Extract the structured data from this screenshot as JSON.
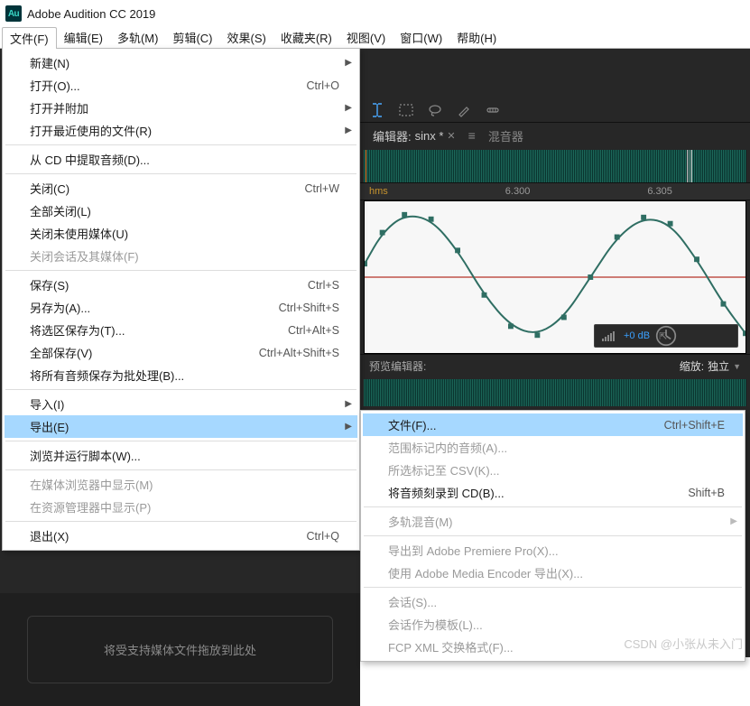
{
  "app": {
    "title": "Adobe Audition CC 2019",
    "icon_text": "Au",
    "icon_bg": "#00343a",
    "icon_fg": "#3ad6c6"
  },
  "menubar": {
    "items": [
      {
        "label": "文件(F)",
        "open": true
      },
      {
        "label": "编辑(E)"
      },
      {
        "label": "多轨(M)"
      },
      {
        "label": "剪辑(C)"
      },
      {
        "label": "效果(S)"
      },
      {
        "label": "收藏夹(R)"
      },
      {
        "label": "视图(V)"
      },
      {
        "label": "窗口(W)"
      },
      {
        "label": "帮助(H)"
      }
    ]
  },
  "file_menu": {
    "highlight_bg": "#a6d8ff",
    "items": [
      {
        "label": "新建(N)",
        "submenu": true
      },
      {
        "label": "打开(O)...",
        "shortcut": "Ctrl+O"
      },
      {
        "label": "打开并附加",
        "submenu": true
      },
      {
        "label": "打开最近使用的文件(R)",
        "submenu": true
      },
      {
        "sep": true
      },
      {
        "label": "从 CD 中提取音频(D)..."
      },
      {
        "sep": true
      },
      {
        "label": "关闭(C)",
        "shortcut": "Ctrl+W"
      },
      {
        "label": "全部关闭(L)"
      },
      {
        "label": "关闭未使用媒体(U)"
      },
      {
        "label": "关闭会话及其媒体(F)",
        "disabled": true
      },
      {
        "sep": true
      },
      {
        "label": "保存(S)",
        "shortcut": "Ctrl+S"
      },
      {
        "label": "另存为(A)...",
        "shortcut": "Ctrl+Shift+S"
      },
      {
        "label": "将选区保存为(T)...",
        "shortcut": "Ctrl+Alt+S"
      },
      {
        "label": "全部保存(V)",
        "shortcut": "Ctrl+Alt+Shift+S"
      },
      {
        "label": "将所有音频保存为批处理(B)..."
      },
      {
        "sep": true
      },
      {
        "label": "导入(I)",
        "submenu": true
      },
      {
        "label": "导出(E)",
        "submenu": true,
        "highlight": true
      },
      {
        "sep": true
      },
      {
        "label": "浏览并运行脚本(W)..."
      },
      {
        "sep": true
      },
      {
        "label": "在媒体浏览器中显示(M)",
        "disabled": true
      },
      {
        "label": "在资源管理器中显示(P)",
        "disabled": true
      },
      {
        "sep": true
      },
      {
        "label": "退出(X)",
        "shortcut": "Ctrl+Q"
      }
    ]
  },
  "export_menu": {
    "items": [
      {
        "label": "文件(F)...",
        "shortcut": "Ctrl+Shift+E",
        "highlight": true
      },
      {
        "label": "范围标记内的音频(A)...",
        "disabled": true
      },
      {
        "label": "所选标记至 CSV(K)...",
        "disabled": true
      },
      {
        "label": "将音频刻录到 CD(B)...",
        "shortcut": "Shift+B"
      },
      {
        "sep": true
      },
      {
        "label": "多轨混音(M)",
        "submenu": true,
        "disabled": true
      },
      {
        "sep": true
      },
      {
        "label": "导出到 Adobe Premiere Pro(X)...",
        "disabled": true
      },
      {
        "label": "使用 Adobe Media Encoder 导出(X)...",
        "disabled": true
      },
      {
        "sep": true
      },
      {
        "label": "会话(S)...",
        "disabled": true
      },
      {
        "label": "会话作为模板(L)...",
        "disabled": true
      },
      {
        "label": "FCP XML 交换格式(F)...",
        "disabled": true
      }
    ]
  },
  "editor": {
    "tabs": {
      "editor_label": "编辑器:",
      "doc_name": "sinx *",
      "mixer_label": "混音器"
    },
    "hms": {
      "label": "hms",
      "t1": "6.300",
      "t2": "6.305"
    },
    "hud": {
      "db_label": "+0 dB"
    },
    "preview": {
      "label": "预览编辑器:",
      "zoom_label": "缩放:",
      "zoom_value": "独立"
    },
    "waveform": {
      "axis_color": "#c0544a",
      "line_color": "#2f6e63",
      "marker_color": "#2f6e63",
      "bg": "#f7f7f7",
      "points": [
        [
          0,
          70
        ],
        [
          20,
          35
        ],
        [
          45,
          15
        ],
        [
          75,
          20
        ],
        [
          105,
          55
        ],
        [
          135,
          105
        ],
        [
          165,
          140
        ],
        [
          195,
          150
        ],
        [
          225,
          130
        ],
        [
          255,
          85
        ],
        [
          285,
          40
        ],
        [
          315,
          18
        ],
        [
          345,
          25
        ],
        [
          375,
          65
        ],
        [
          405,
          115
        ],
        [
          430,
          148
        ]
      ],
      "markers_x": [
        0,
        28,
        56,
        84,
        112,
        140,
        168,
        196,
        224,
        252,
        280,
        308,
        336,
        364,
        392,
        420
      ]
    }
  },
  "dropzone": {
    "text": "将受支持媒体文件拖放到此处"
  },
  "watermark": "CSDN @小张从未入门"
}
